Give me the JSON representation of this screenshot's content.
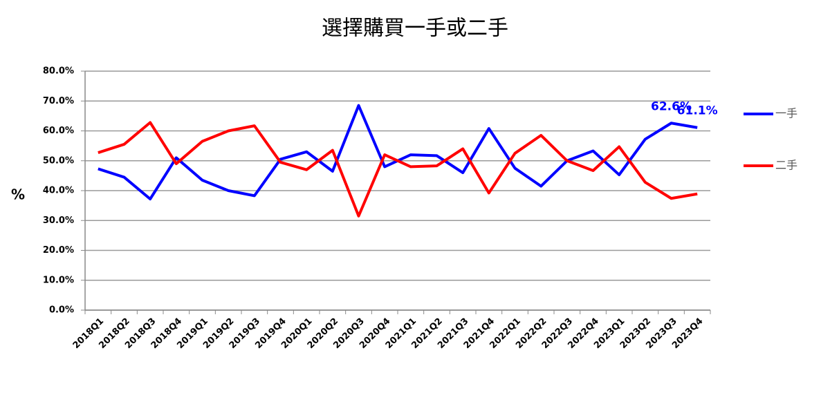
{
  "chart_data": {
    "type": "line",
    "title": "選擇購買一手或二手",
    "y_label": "%",
    "categories": [
      "2018Q1",
      "2018Q2",
      "2018Q3",
      "2018Q4",
      "2019Q1",
      "2019Q2",
      "2019Q3",
      "2019Q4",
      "2020Q1",
      "2020Q2",
      "2020Q3",
      "2020Q4",
      "2021Q1",
      "2021Q2",
      "2021Q3",
      "2021Q4",
      "2022Q1",
      "2022Q2",
      "2022Q3",
      "2022Q4",
      "2023Q1",
      "2023Q2",
      "2023Q3",
      "2023Q4"
    ],
    "series": [
      {
        "name": "一手",
        "color": "#0000ff",
        "values": [
          47.3,
          44.5,
          37.2,
          51,
          43.5,
          40,
          38.3,
          50.5,
          53,
          46.5,
          68.5,
          48,
          52,
          51.7,
          46,
          60.8,
          47.5,
          41.5,
          50,
          53.3,
          45.3,
          57.2,
          62.6,
          61.1
        ],
        "value_labels": [
          null,
          null,
          null,
          null,
          null,
          null,
          null,
          null,
          null,
          null,
          null,
          null,
          null,
          null,
          null,
          null,
          null,
          null,
          null,
          null,
          null,
          null,
          "62.6%",
          "61.1%"
        ]
      },
      {
        "name": "二手",
        "color": "#ff0000",
        "values": [
          52.7,
          55.5,
          62.8,
          49,
          56.5,
          60,
          61.7,
          49.5,
          47,
          53.5,
          31.5,
          52,
          48,
          48.3,
          54,
          39.2,
          52.5,
          58.5,
          50,
          46.7,
          54.7,
          42.8,
          37.4,
          38.9
        ]
      }
    ],
    "ylim": [
      0,
      80
    ],
    "yticks": [
      {
        "value": 0,
        "label": "0.0%"
      },
      {
        "value": 10,
        "label": "10.0%"
      },
      {
        "value": 20,
        "label": "20.0%"
      },
      {
        "value": 30,
        "label": "30.0%"
      },
      {
        "value": 40,
        "label": "40.0%"
      },
      {
        "value": 50,
        "label": "50.0%"
      },
      {
        "value": 60,
        "label": "60.0%"
      },
      {
        "value": 70,
        "label": "70.0%"
      },
      {
        "value": 80,
        "label": "80.0%"
      }
    ],
    "grid": true,
    "legend": "right"
  }
}
